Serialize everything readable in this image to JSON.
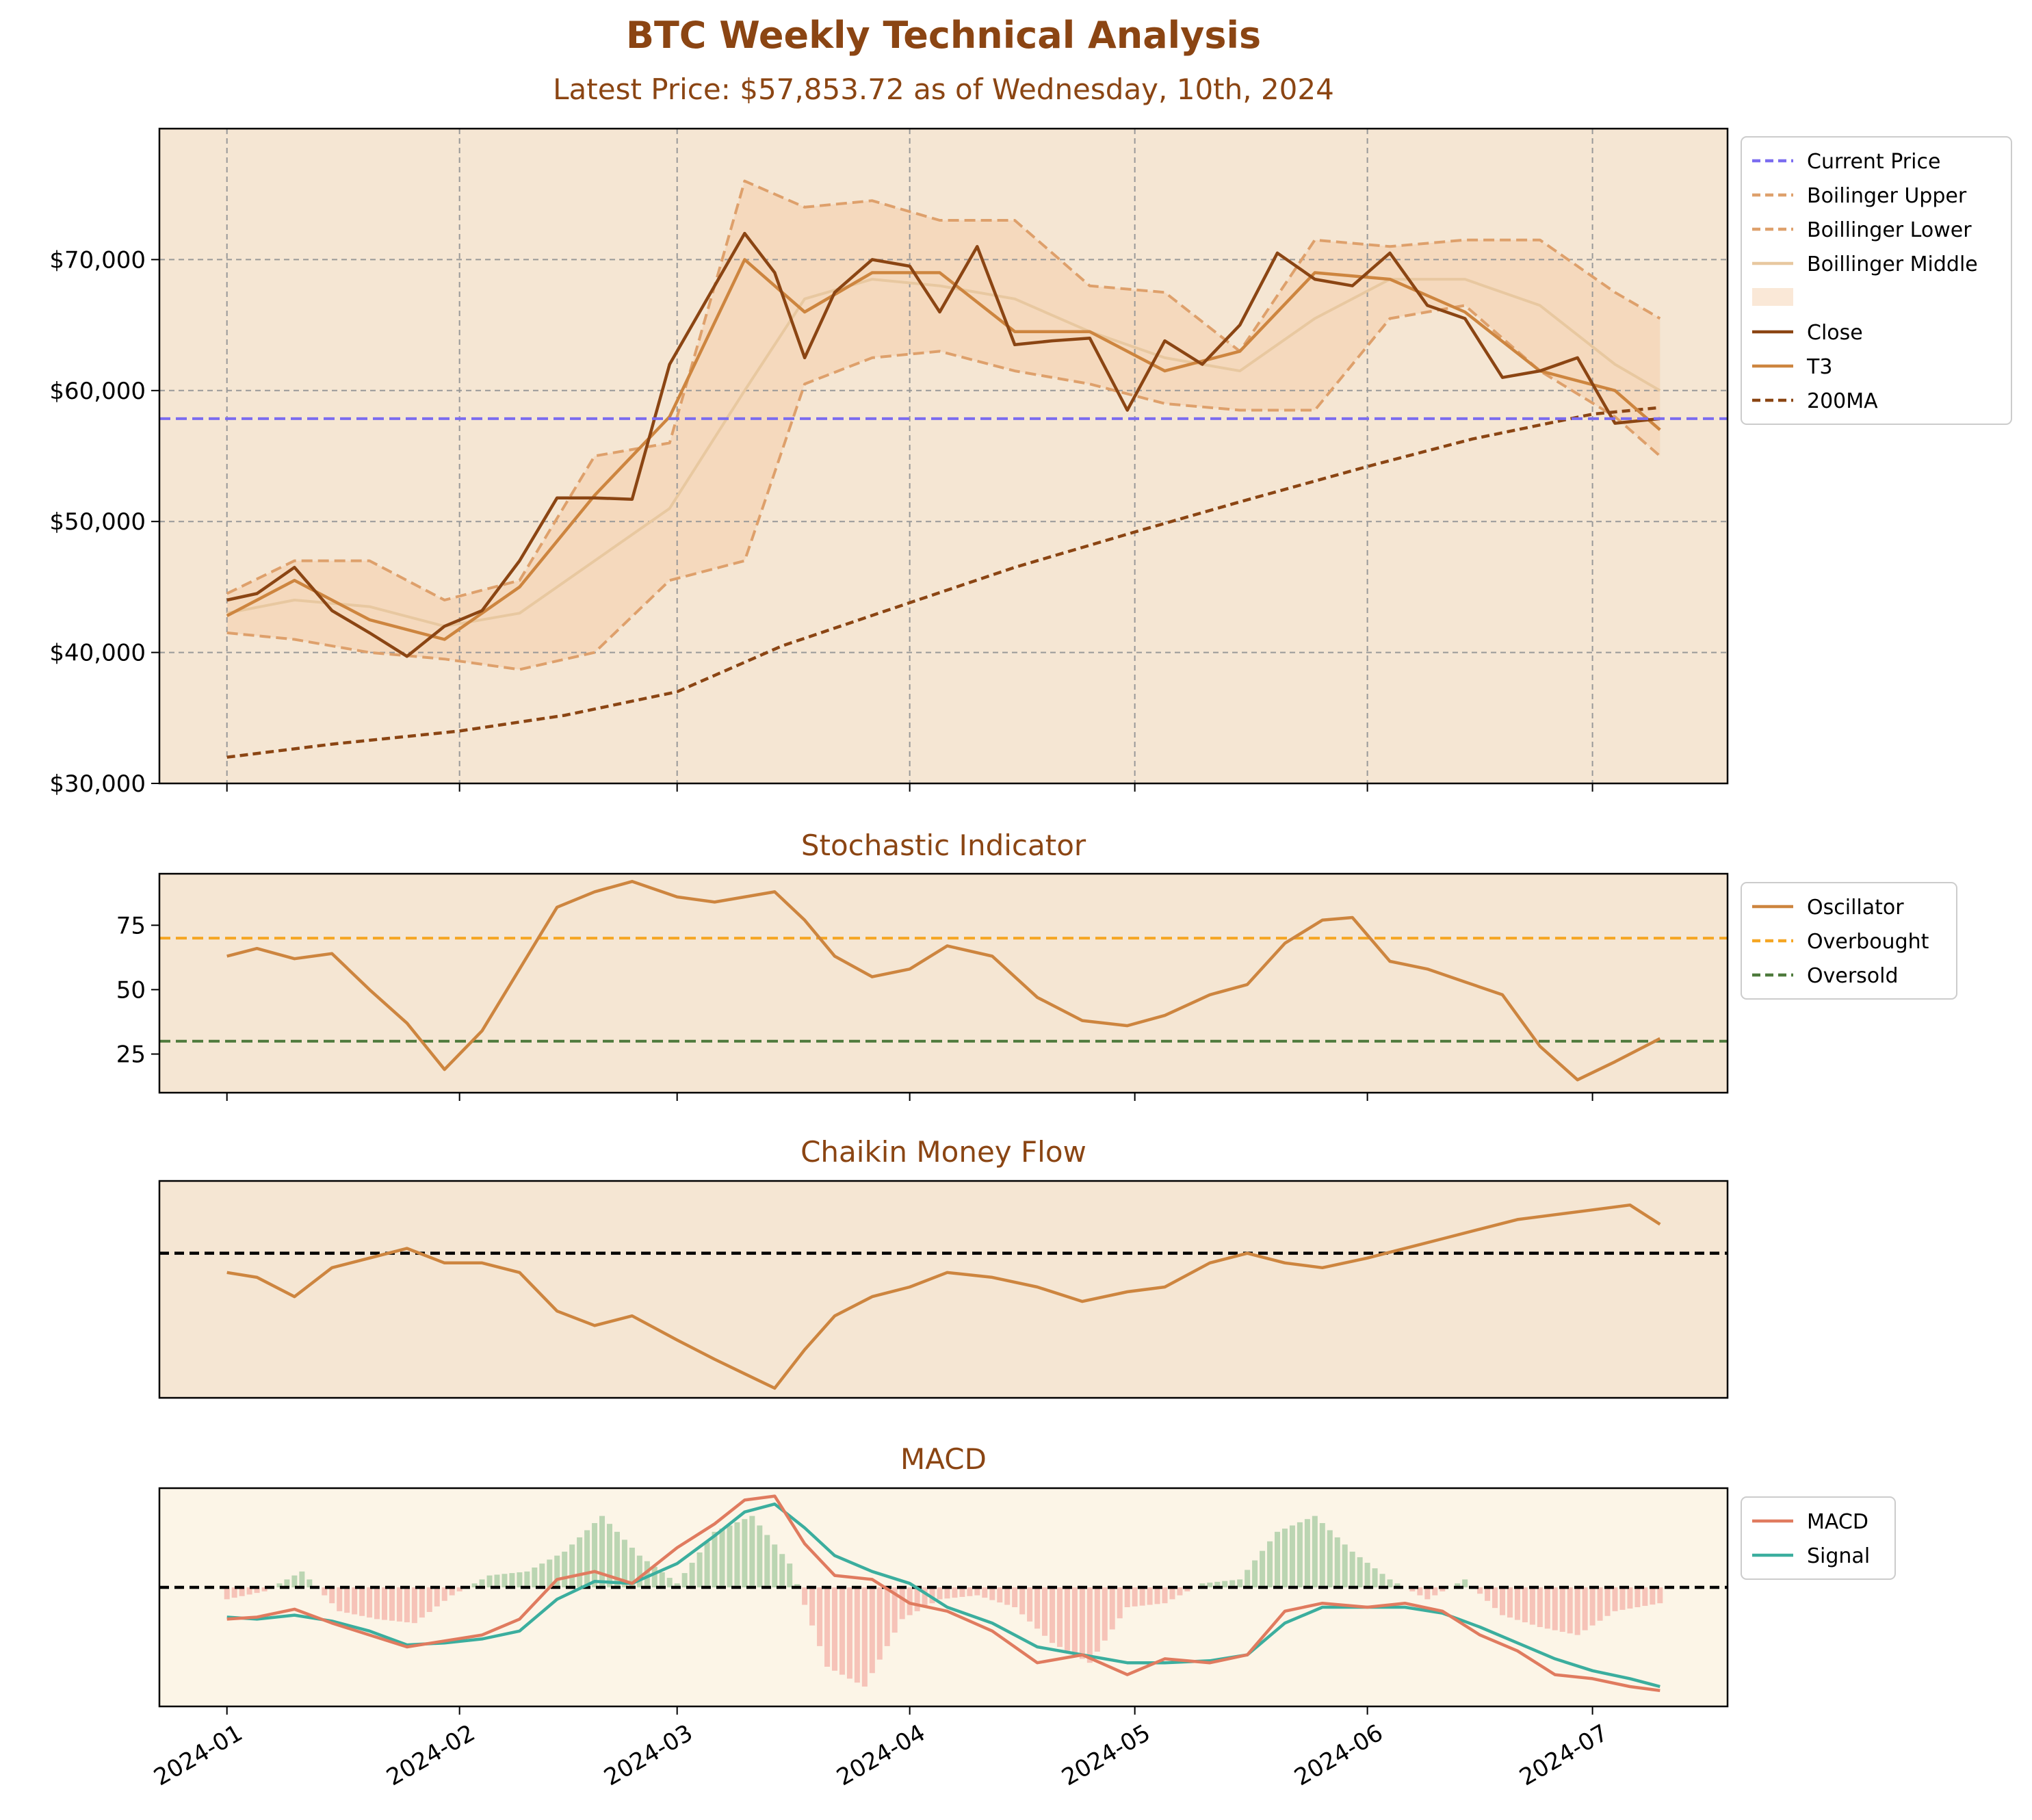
{
  "title": "BTC Weekly Technical Analysis",
  "subtitle": "Latest Price: $57,853.72 as of Wednesday, 10th, 2024",
  "colors": {
    "title": "#8B4513",
    "panel_bg": "#F5E6D3",
    "macd_bg": "#FCF5E7",
    "close": "#8B4513",
    "t3": "#CD853F",
    "ma200": "#8B4513",
    "boll": "#DEA06B",
    "boll_middle": "#E8C8A0",
    "boll_fill": "#F5CBA7",
    "current_price": "#7B6CF0",
    "oscillator": "#CD853F",
    "overbought": "#F5A623",
    "oversold": "#4E7A3C",
    "macd_line": "#E07B5F",
    "signal_line": "#3BAE9E",
    "hist_pos": "#8FBF8F",
    "hist_neg": "#F2A29A"
  },
  "chart_data": [
    {
      "type": "line",
      "name": "price",
      "ylabel": "",
      "ylim": [
        30000,
        80000
      ],
      "yticks": [
        30000,
        40000,
        50000,
        60000,
        70000
      ],
      "ytick_labels": [
        "$30,000",
        "$40,000",
        "$50,000",
        "$60,000",
        "$70,000"
      ],
      "xlim": [
        "2023-12-23",
        "2024-07-19"
      ],
      "xticks": [
        "2024-01-01",
        "2024-02-01",
        "2024-03-01",
        "2024-04-01",
        "2024-05-01",
        "2024-06-01",
        "2024-07-01"
      ],
      "grid": true,
      "legend": "outside-right",
      "current_price": 57853.72,
      "legend_entries": [
        "Current Price",
        "Boilinger Upper",
        "Boillinger Lower",
        "Boillinger Middle",
        "",
        "Close",
        "T3",
        "200MA"
      ],
      "series": [
        {
          "name": "Close",
          "x": [
            "2024-01-01",
            "2024-01-05",
            "2024-01-10",
            "2024-01-15",
            "2024-01-20",
            "2024-01-25",
            "2024-01-30",
            "2024-02-04",
            "2024-02-09",
            "2024-02-14",
            "2024-02-19",
            "2024-02-24",
            "2024-02-29",
            "2024-03-05",
            "2024-03-10",
            "2024-03-14",
            "2024-03-18",
            "2024-03-22",
            "2024-03-27",
            "2024-04-01",
            "2024-04-05",
            "2024-04-10",
            "2024-04-15",
            "2024-04-20",
            "2024-04-25",
            "2024-04-30",
            "2024-05-05",
            "2024-05-10",
            "2024-05-15",
            "2024-05-20",
            "2024-05-25",
            "2024-05-30",
            "2024-06-04",
            "2024-06-09",
            "2024-06-14",
            "2024-06-19",
            "2024-06-24",
            "2024-06-29",
            "2024-07-04",
            "2024-07-10"
          ],
          "values": [
            44000,
            44500,
            46500,
            43200,
            41500,
            39700,
            42000,
            43200,
            47000,
            51800,
            51800,
            51700,
            62000,
            67000,
            72000,
            69000,
            62500,
            67500,
            70000,
            69500,
            66000,
            71000,
            63500,
            63800,
            64000,
            58500,
            63800,
            62000,
            65000,
            70500,
            68500,
            68000,
            70500,
            66500,
            65500,
            61000,
            61500,
            62500,
            57500,
            57854
          ]
        },
        {
          "name": "T3",
          "x": [
            "2024-01-01",
            "2024-01-10",
            "2024-01-20",
            "2024-01-30",
            "2024-02-09",
            "2024-02-19",
            "2024-02-29",
            "2024-03-10",
            "2024-03-18",
            "2024-03-27",
            "2024-04-05",
            "2024-04-15",
            "2024-04-25",
            "2024-05-05",
            "2024-05-15",
            "2024-05-25",
            "2024-06-04",
            "2024-06-14",
            "2024-06-24",
            "2024-07-04",
            "2024-07-10"
          ],
          "values": [
            42800,
            45500,
            42500,
            41000,
            45000,
            52000,
            58000,
            70000,
            66000,
            69000,
            69000,
            64500,
            64500,
            61500,
            63000,
            69000,
            68500,
            66000,
            61500,
            60000,
            57000
          ]
        },
        {
          "name": "200MA",
          "x": [
            "2024-01-01",
            "2024-01-15",
            "2024-02-01",
            "2024-02-15",
            "2024-03-01",
            "2024-03-15",
            "2024-04-01",
            "2024-04-15",
            "2024-05-01",
            "2024-05-15",
            "2024-06-01",
            "2024-06-15",
            "2024-07-01",
            "2024-07-10"
          ],
          "values": [
            32000,
            33000,
            34000,
            35200,
            37000,
            40500,
            43800,
            46500,
            49200,
            51500,
            54200,
            56300,
            58200,
            58700
          ]
        },
        {
          "name": "Boilinger Upper",
          "x": [
            "2024-01-01",
            "2024-01-10",
            "2024-01-20",
            "2024-01-30",
            "2024-02-09",
            "2024-02-19",
            "2024-02-29",
            "2024-03-10",
            "2024-03-18",
            "2024-03-27",
            "2024-04-05",
            "2024-04-15",
            "2024-04-25",
            "2024-05-05",
            "2024-05-15",
            "2024-05-25",
            "2024-06-04",
            "2024-06-14",
            "2024-06-24",
            "2024-07-04",
            "2024-07-10"
          ],
          "values": [
            44500,
            47000,
            47000,
            44000,
            45500,
            55000,
            56000,
            76000,
            74000,
            74500,
            73000,
            73000,
            68000,
            67500,
            63000,
            71500,
            71000,
            71500,
            71500,
            67500,
            65500
          ]
        },
        {
          "name": "Boillinger Lower",
          "x": [
            "2024-01-01",
            "2024-01-10",
            "2024-01-20",
            "2024-01-30",
            "2024-02-09",
            "2024-02-19",
            "2024-02-29",
            "2024-03-10",
            "2024-03-18",
            "2024-03-27",
            "2024-04-05",
            "2024-04-15",
            "2024-04-25",
            "2024-05-05",
            "2024-05-15",
            "2024-05-25",
            "2024-06-04",
            "2024-06-14",
            "2024-06-24",
            "2024-07-04",
            "2024-07-10"
          ],
          "values": [
            41500,
            41000,
            40000,
            39500,
            38700,
            40000,
            45500,
            47000,
            60500,
            62500,
            63000,
            61500,
            60500,
            59000,
            58500,
            58500,
            65500,
            66500,
            61500,
            58000,
            55000
          ]
        },
        {
          "name": "Boillinger Middle",
          "x": [
            "2024-01-01",
            "2024-01-10",
            "2024-01-20",
            "2024-01-30",
            "2024-02-09",
            "2024-02-19",
            "2024-02-29",
            "2024-03-10",
            "2024-03-18",
            "2024-03-27",
            "2024-04-05",
            "2024-04-15",
            "2024-04-25",
            "2024-05-05",
            "2024-05-15",
            "2024-05-25",
            "2024-06-04",
            "2024-06-14",
            "2024-06-24",
            "2024-07-04",
            "2024-07-10"
          ],
          "values": [
            43000,
            44000,
            43500,
            42000,
            43000,
            47000,
            51000,
            60000,
            67000,
            68500,
            68000,
            67000,
            64500,
            62500,
            61500,
            65500,
            68500,
            68500,
            66500,
            62000,
            60000
          ]
        }
      ]
    },
    {
      "type": "line",
      "name": "stochastic",
      "title": "Stochastic Indicator",
      "ylim": [
        10,
        95
      ],
      "yticks": [
        25,
        50,
        75
      ],
      "overbought": 70,
      "oversold": 30,
      "legend_entries": [
        "Oscillator",
        "Overbought",
        "Oversold"
      ],
      "series": [
        {
          "name": "Oscillator",
          "x": [
            "2024-01-01",
            "2024-01-05",
            "2024-01-10",
            "2024-01-15",
            "2024-01-20",
            "2024-01-25",
            "2024-01-30",
            "2024-02-04",
            "2024-02-09",
            "2024-02-14",
            "2024-02-19",
            "2024-02-24",
            "2024-03-01",
            "2024-03-06",
            "2024-03-10",
            "2024-03-14",
            "2024-03-18",
            "2024-03-22",
            "2024-03-27",
            "2024-04-01",
            "2024-04-06",
            "2024-04-12",
            "2024-04-18",
            "2024-04-24",
            "2024-04-30",
            "2024-05-05",
            "2024-05-11",
            "2024-05-16",
            "2024-05-21",
            "2024-05-26",
            "2024-05-30",
            "2024-06-04",
            "2024-06-09",
            "2024-06-14",
            "2024-06-19",
            "2024-06-24",
            "2024-06-29",
            "2024-07-04",
            "2024-07-10"
          ],
          "values": [
            63,
            66,
            62,
            64,
            50,
            37,
            19,
            34,
            58,
            82,
            88,
            92,
            86,
            84,
            86,
            88,
            77,
            63,
            55,
            58,
            67,
            63,
            47,
            38,
            36,
            40,
            48,
            52,
            68,
            77,
            78,
            61,
            58,
            53,
            48,
            28,
            15,
            22,
            31
          ]
        }
      ]
    },
    {
      "type": "line",
      "name": "chaikin",
      "title": "Chaikin Money Flow",
      "ylim": [
        -0.3,
        0.15
      ],
      "zero_line": 0,
      "series": [
        {
          "name": "CMF",
          "x": [
            "2024-01-01",
            "2024-01-05",
            "2024-01-10",
            "2024-01-15",
            "2024-01-20",
            "2024-01-25",
            "2024-01-30",
            "2024-02-04",
            "2024-02-09",
            "2024-02-14",
            "2024-02-19",
            "2024-02-24",
            "2024-03-01",
            "2024-03-06",
            "2024-03-10",
            "2024-03-14",
            "2024-03-18",
            "2024-03-22",
            "2024-03-27",
            "2024-04-01",
            "2024-04-06",
            "2024-04-12",
            "2024-04-18",
            "2024-04-24",
            "2024-04-30",
            "2024-05-05",
            "2024-05-11",
            "2024-05-16",
            "2024-05-21",
            "2024-05-26",
            "2024-06-01",
            "2024-06-06",
            "2024-06-11",
            "2024-06-16",
            "2024-06-21",
            "2024-06-26",
            "2024-07-01",
            "2024-07-06",
            "2024-07-10"
          ],
          "values": [
            -0.04,
            -0.05,
            -0.09,
            -0.03,
            -0.01,
            0.01,
            -0.02,
            -0.02,
            -0.04,
            -0.12,
            -0.15,
            -0.13,
            -0.18,
            -0.22,
            -0.25,
            -0.28,
            -0.2,
            -0.13,
            -0.09,
            -0.07,
            -0.04,
            -0.05,
            -0.07,
            -0.1,
            -0.08,
            -0.07,
            -0.02,
            0.0,
            -0.02,
            -0.03,
            -0.01,
            0.01,
            0.03,
            0.05,
            0.07,
            0.08,
            0.09,
            0.1,
            0.06
          ]
        }
      ]
    },
    {
      "type": "line",
      "name": "macd",
      "title": "MACD",
      "ylim": [
        -3000,
        2500
      ],
      "zero_line": 0,
      "legend_entries": [
        "MACD",
        "Signal"
      ],
      "series": [
        {
          "name": "MACD",
          "x": [
            "2024-01-01",
            "2024-01-05",
            "2024-01-10",
            "2024-01-15",
            "2024-01-20",
            "2024-01-25",
            "2024-01-30",
            "2024-02-04",
            "2024-02-09",
            "2024-02-14",
            "2024-02-19",
            "2024-02-24",
            "2024-03-01",
            "2024-03-06",
            "2024-03-10",
            "2024-03-14",
            "2024-03-18",
            "2024-03-22",
            "2024-03-27",
            "2024-04-01",
            "2024-04-06",
            "2024-04-12",
            "2024-04-18",
            "2024-04-24",
            "2024-04-30",
            "2024-05-05",
            "2024-05-11",
            "2024-05-16",
            "2024-05-21",
            "2024-05-26",
            "2024-06-01",
            "2024-06-06",
            "2024-06-11",
            "2024-06-16",
            "2024-06-21",
            "2024-06-26",
            "2024-07-01",
            "2024-07-06",
            "2024-07-10"
          ],
          "values": [
            -800,
            -750,
            -550,
            -900,
            -1200,
            -1500,
            -1350,
            -1200,
            -800,
            200,
            400,
            100,
            1000,
            1600,
            2200,
            2300,
            1100,
            300,
            200,
            -400,
            -600,
            -1100,
            -1900,
            -1700,
            -2200,
            -1800,
            -1900,
            -1700,
            -600,
            -400,
            -500,
            -400,
            -600,
            -1200,
            -1600,
            -2200,
            -2300,
            -2500,
            -2600
          ]
        },
        {
          "name": "Signal",
          "x": [
            "2024-01-01",
            "2024-01-05",
            "2024-01-10",
            "2024-01-15",
            "2024-01-20",
            "2024-01-25",
            "2024-01-30",
            "2024-02-04",
            "2024-02-09",
            "2024-02-14",
            "2024-02-19",
            "2024-02-24",
            "2024-03-01",
            "2024-03-06",
            "2024-03-10",
            "2024-03-14",
            "2024-03-18",
            "2024-03-22",
            "2024-03-27",
            "2024-04-01",
            "2024-04-06",
            "2024-04-12",
            "2024-04-18",
            "2024-04-24",
            "2024-04-30",
            "2024-05-05",
            "2024-05-11",
            "2024-05-16",
            "2024-05-21",
            "2024-05-26",
            "2024-06-01",
            "2024-06-06",
            "2024-06-11",
            "2024-06-16",
            "2024-06-21",
            "2024-06-26",
            "2024-07-01",
            "2024-07-06",
            "2024-07-10"
          ],
          "values": [
            -750,
            -800,
            -700,
            -850,
            -1100,
            -1450,
            -1400,
            -1300,
            -1100,
            -300,
            150,
            100,
            600,
            1300,
            1900,
            2100,
            1500,
            800,
            400,
            100,
            -500,
            -900,
            -1500,
            -1700,
            -1900,
            -1900,
            -1850,
            -1700,
            -900,
            -500,
            -500,
            -500,
            -650,
            -1000,
            -1400,
            -1800,
            -2100,
            -2300,
            -2500
          ]
        },
        {
          "name": "Histogram",
          "x": [
            "2024-01-01",
            "2024-01-06",
            "2024-01-11",
            "2024-01-16",
            "2024-01-21",
            "2024-01-26",
            "2024-01-31",
            "2024-02-05",
            "2024-02-10",
            "2024-02-15",
            "2024-02-20",
            "2024-02-25",
            "2024-03-01",
            "2024-03-06",
            "2024-03-11",
            "2024-03-16",
            "2024-03-21",
            "2024-03-26",
            "2024-03-31",
            "2024-04-05",
            "2024-04-10",
            "2024-04-15",
            "2024-04-20",
            "2024-04-25",
            "2024-04-30",
            "2024-05-05",
            "2024-05-10",
            "2024-05-15",
            "2024-05-20",
            "2024-05-25",
            "2024-05-30",
            "2024-06-04",
            "2024-06-09",
            "2024-06-14",
            "2024-06-19",
            "2024-06-24",
            "2024-06-29",
            "2024-07-04",
            "2024-07-10"
          ],
          "values": [
            -300,
            -100,
            400,
            -600,
            -800,
            -900,
            -200,
            300,
            400,
            900,
            1800,
            800,
            100,
            1400,
            1800,
            600,
            -2000,
            -2500,
            -800,
            -300,
            -200,
            -500,
            -1400,
            -1900,
            -500,
            -400,
            100,
            200,
            1400,
            1800,
            900,
            200,
            -300,
            200,
            -700,
            -1000,
            -1200,
            -600,
            -400
          ]
        }
      ]
    }
  ],
  "xtick_labels": [
    "2024-01",
    "2024-02",
    "2024-03",
    "2024-04",
    "2024-05",
    "2024-06",
    "2024-07"
  ]
}
